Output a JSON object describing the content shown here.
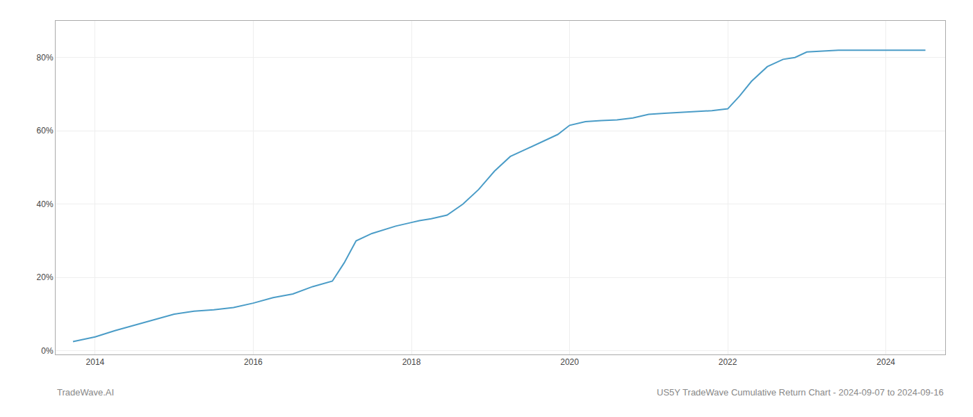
{
  "chart_data": {
    "type": "line",
    "annotations": [
      "TradeWave.AI",
      "US5Y TradeWave Cumulative Return Chart - 2024-09-07 to 2024-09-16"
    ],
    "x": [
      2013.72,
      2014.0,
      2014.25,
      2014.5,
      2014.75,
      2015.0,
      2015.25,
      2015.5,
      2015.75,
      2016.0,
      2016.25,
      2016.5,
      2016.75,
      2017.0,
      2017.15,
      2017.3,
      2017.5,
      2017.65,
      2017.8,
      2018.0,
      2018.1,
      2018.25,
      2018.45,
      2018.65,
      2018.85,
      2019.05,
      2019.25,
      2019.45,
      2019.65,
      2019.85,
      2020.0,
      2020.2,
      2020.4,
      2020.6,
      2020.8,
      2021.0,
      2021.2,
      2021.4,
      2021.6,
      2021.8,
      2022.0,
      2022.15,
      2022.3,
      2022.5,
      2022.7,
      2022.85,
      2023.0,
      2023.2,
      2023.4,
      2023.6,
      2023.8,
      2024.0,
      2024.2,
      2024.5
    ],
    "values": [
      0.025,
      0.038,
      0.055,
      0.07,
      0.085,
      0.1,
      0.108,
      0.112,
      0.118,
      0.13,
      0.145,
      0.155,
      0.175,
      0.19,
      0.24,
      0.3,
      0.32,
      0.33,
      0.34,
      0.35,
      0.355,
      0.36,
      0.37,
      0.4,
      0.44,
      0.49,
      0.53,
      0.55,
      0.57,
      0.59,
      0.615,
      0.625,
      0.628,
      0.63,
      0.635,
      0.645,
      0.648,
      0.65,
      0.652,
      0.655,
      0.66,
      0.695,
      0.735,
      0.775,
      0.795,
      0.8,
      0.815,
      0.818,
      0.82,
      0.82,
      0.82,
      0.82,
      0.82,
      0.82
    ],
    "color": "#4a9cc7",
    "xlim": [
      2013.5,
      2024.75
    ],
    "ylim": [
      -0.01,
      0.9
    ],
    "xticks": [
      2014,
      2016,
      2018,
      2020,
      2022,
      2024
    ],
    "yticks": [
      {
        "value": 0.0,
        "label": "0%"
      },
      {
        "value": 0.2,
        "label": "20%"
      },
      {
        "value": 0.4,
        "label": "40%"
      },
      {
        "value": 0.6,
        "label": "60%"
      },
      {
        "value": 0.8,
        "label": "80%"
      }
    ],
    "grid": true
  }
}
